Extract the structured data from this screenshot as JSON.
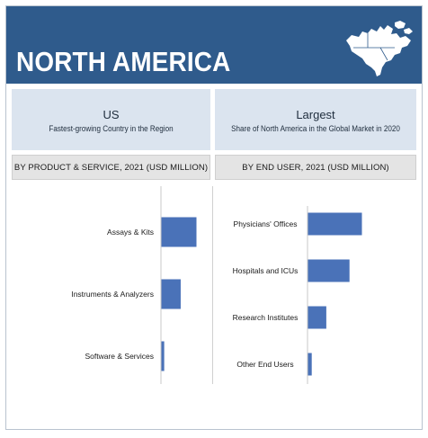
{
  "header": {
    "title": "NORTH AMERICA",
    "map_icon": "north-america-map-icon"
  },
  "highlights": [
    {
      "headline": "US",
      "subtext": "Fastest-growing Country in the Region"
    },
    {
      "headline": "Largest",
      "subtext": "Share of North America in the Global Market in 2020"
    }
  ],
  "colors": {
    "header_bg": "#2f5b8c",
    "highlight_bg": "#dbe4ef",
    "section_bg": "#e4e4e4",
    "bar": "#4a72b8"
  },
  "chart_data": [
    {
      "type": "bar",
      "orientation": "horizontal",
      "title": "BY PRODUCT & SERVICE, 2021 (USD MILLION)",
      "categories": [
        "Assays & Kits",
        "Instruments & Analyzers",
        "Software & Services"
      ],
      "values": [
        100,
        55,
        8
      ],
      "axis_labels_shown": false,
      "grid": false,
      "legend": "none"
    },
    {
      "type": "bar",
      "orientation": "horizontal",
      "title": "BY END USER, 2021 (USD MILLION)",
      "categories": [
        "Physicians' Offices",
        "Hospitals and ICUs",
        "Research Institutes",
        "Other End Users"
      ],
      "values": [
        100,
        77,
        34,
        7
      ],
      "axis_labels_shown": false,
      "grid": false,
      "legend": "none"
    }
  ]
}
